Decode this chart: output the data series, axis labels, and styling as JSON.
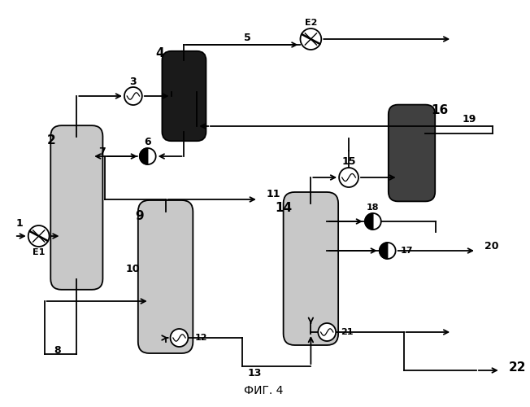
{
  "title": "ФИГ. 4",
  "bg_color": "#ffffff",
  "lc": "#000000",
  "lw": 1.3
}
